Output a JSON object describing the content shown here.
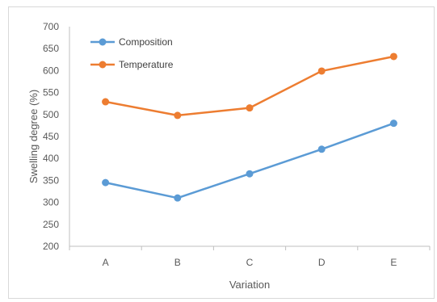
{
  "chart_data": {
    "type": "line",
    "categories": [
      "A",
      "B",
      "C",
      "D",
      "E"
    ],
    "series": [
      {
        "name": "Composition",
        "color": "#5b9bd5",
        "values": [
          345,
          310,
          365,
          421,
          480
        ]
      },
      {
        "name": "Temperature",
        "color": "#ed7d31",
        "values": [
          529,
          498,
          515,
          599,
          632
        ]
      }
    ],
    "xlabel": "Variation",
    "ylabel": "Swelling degree (%)",
    "ylim": [
      200,
      700
    ],
    "yticks": [
      200,
      250,
      300,
      350,
      400,
      450,
      500,
      550,
      600,
      650,
      700
    ],
    "grid": false,
    "legend_position": "top-left"
  }
}
